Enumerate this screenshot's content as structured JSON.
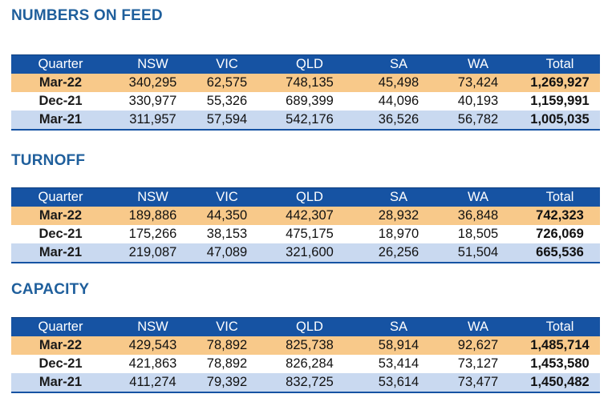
{
  "sections": [
    {
      "title": "NUMBERS ON FEED",
      "headers": [
        "Quarter",
        "NSW",
        "VIC",
        "QLD",
        "SA",
        "WA",
        "Total"
      ],
      "rows": [
        [
          "Mar-22",
          "340,295",
          "62,575",
          "748,135",
          "45,498",
          "73,424",
          "1,269,927"
        ],
        [
          "Dec-21",
          "330,977",
          "55,326",
          "689,399",
          "44,096",
          "40,193",
          "1,159,991"
        ],
        [
          "Mar-21",
          "311,957",
          "57,594",
          "542,176",
          "36,526",
          "56,782",
          "1,005,035"
        ]
      ]
    },
    {
      "title": "TURNOFF",
      "headers": [
        "Quarter",
        "NSW",
        "VIC",
        "QLD",
        "SA",
        "WA",
        "Total"
      ],
      "rows": [
        [
          "Mar-22",
          "189,886",
          "44,350",
          "442,307",
          "28,932",
          "36,848",
          "742,323"
        ],
        [
          "Dec-21",
          "175,266",
          "38,153",
          "475,175",
          "18,970",
          "18,505",
          "726,069"
        ],
        [
          "Mar-21",
          "219,087",
          "47,089",
          "321,600",
          "26,256",
          "51,504",
          "665,536"
        ]
      ]
    },
    {
      "title": "CAPACITY",
      "headers": [
        "Quarter",
        "NSW",
        "VIC",
        "QLD",
        "SA",
        "WA",
        "Total"
      ],
      "rows": [
        [
          "Mar-22",
          "429,543",
          "78,892",
          "825,738",
          "58,914",
          "92,627",
          "1,485,714"
        ],
        [
          "Dec-21",
          "421,863",
          "78,892",
          "826,284",
          "53,414",
          "73,127",
          "1,453,580"
        ],
        [
          "Mar-21",
          "411,274",
          "79,392",
          "832,725",
          "53,614",
          "73,477",
          "1,450,482"
        ]
      ]
    }
  ],
  "colors": {
    "title": "#1f5f9c",
    "header_bg": "#1653a3",
    "row_1": "#f8c98a",
    "row_2": "#ffffff",
    "row_3": "#c9d9f0"
  }
}
